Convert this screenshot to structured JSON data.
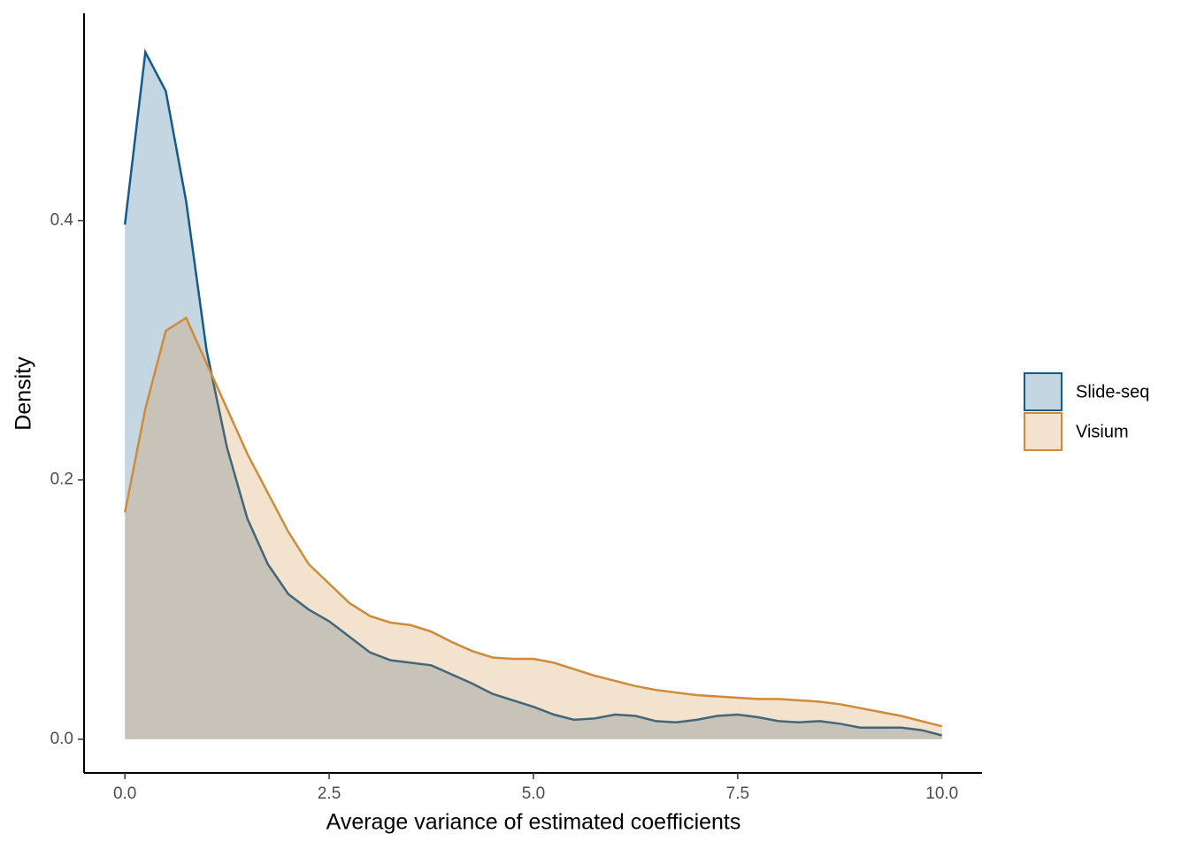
{
  "chart_data": {
    "type": "density",
    "x_label": "Average variance of estimated coefficients",
    "y_label": "Density",
    "x": [
      0,
      0.25,
      0.5,
      0.75,
      1,
      1.25,
      1.5,
      1.75,
      2,
      2.25,
      2.5,
      2.75,
      3,
      3.25,
      3.5,
      3.75,
      4,
      4.25,
      4.5,
      4.75,
      5,
      5.25,
      5.5,
      5.75,
      6,
      6.25,
      6.5,
      6.75,
      7,
      7.25,
      7.5,
      7.75,
      8,
      8.25,
      8.5,
      8.75,
      9,
      9.25,
      9.5,
      9.75,
      10
    ],
    "series": [
      {
        "name": "Slide-seq",
        "color": "#145a8c",
        "values": [
          0.397,
          0.53,
          0.5,
          0.415,
          0.3,
          0.225,
          0.17,
          0.135,
          0.112,
          0.1,
          0.091,
          0.079,
          0.067,
          0.061,
          0.059,
          0.057,
          0.05,
          0.043,
          0.035,
          0.03,
          0.025,
          0.019,
          0.015,
          0.016,
          0.019,
          0.018,
          0.014,
          0.013,
          0.015,
          0.018,
          0.019,
          0.017,
          0.014,
          0.013,
          0.014,
          0.012,
          0.009,
          0.009,
          0.009,
          0.007,
          0.003
        ]
      },
      {
        "name": "Visium",
        "color": "#d08b3a",
        "values": [
          0.175,
          0.255,
          0.315,
          0.325,
          0.29,
          0.255,
          0.22,
          0.19,
          0.16,
          0.135,
          0.12,
          0.105,
          0.095,
          0.09,
          0.088,
          0.083,
          0.075,
          0.068,
          0.063,
          0.062,
          0.062,
          0.059,
          0.054,
          0.049,
          0.045,
          0.041,
          0.038,
          0.036,
          0.034,
          0.033,
          0.032,
          0.031,
          0.031,
          0.03,
          0.029,
          0.027,
          0.024,
          0.021,
          0.018,
          0.014,
          0.01
        ]
      }
    ],
    "xlim": [
      -0.5,
      10.49
    ],
    "ylim": [
      -0.026,
      0.56
    ],
    "xticks": [
      {
        "value": 0,
        "label": "0.0"
      },
      2.5,
      {
        "value": 5,
        "label": "5.0"
      },
      7.5,
      {
        "value": 10,
        "label": "10.0"
      }
    ],
    "yticks": [
      {
        "value": 0,
        "label": "0.0"
      },
      0.2,
      0.4
    ],
    "legend": "right"
  }
}
